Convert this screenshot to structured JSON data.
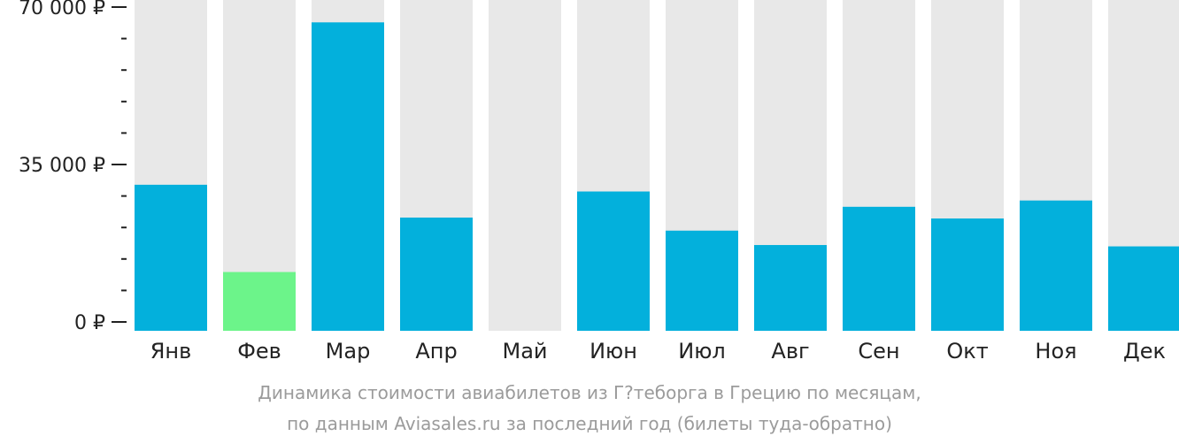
{
  "chart_data": {
    "type": "bar",
    "categories": [
      "Янв",
      "Фев",
      "Мар",
      "Апр",
      "Май",
      "Июн",
      "Июл",
      "Авг",
      "Сен",
      "Окт",
      "Ноя",
      "Дек"
    ],
    "values": [
      30500,
      11100,
      66600,
      23200,
      null,
      29000,
      20300,
      17100,
      25600,
      23000,
      27000,
      16800
    ],
    "highlight_index": 1,
    "ylim": [
      0,
      70000
    ],
    "yticks": [
      0,
      35000,
      70000
    ],
    "ytick_labels": [
      "0 ₽",
      "35 000 ₽",
      "70 000 ₽"
    ],
    "minor_ticks_per_major": 5,
    "colors": {
      "bar": "#03b0dc",
      "highlight": "#6cf48a",
      "background_bar": "#e8e8e8",
      "axis": "#222222"
    },
    "caption_lines": [
      "Динамика стоимости авиабилетов из Г?теборга в Грецию по месяцам,",
      "по данным Aviasales.ru за последний год (билеты туда-обратно)"
    ]
  }
}
